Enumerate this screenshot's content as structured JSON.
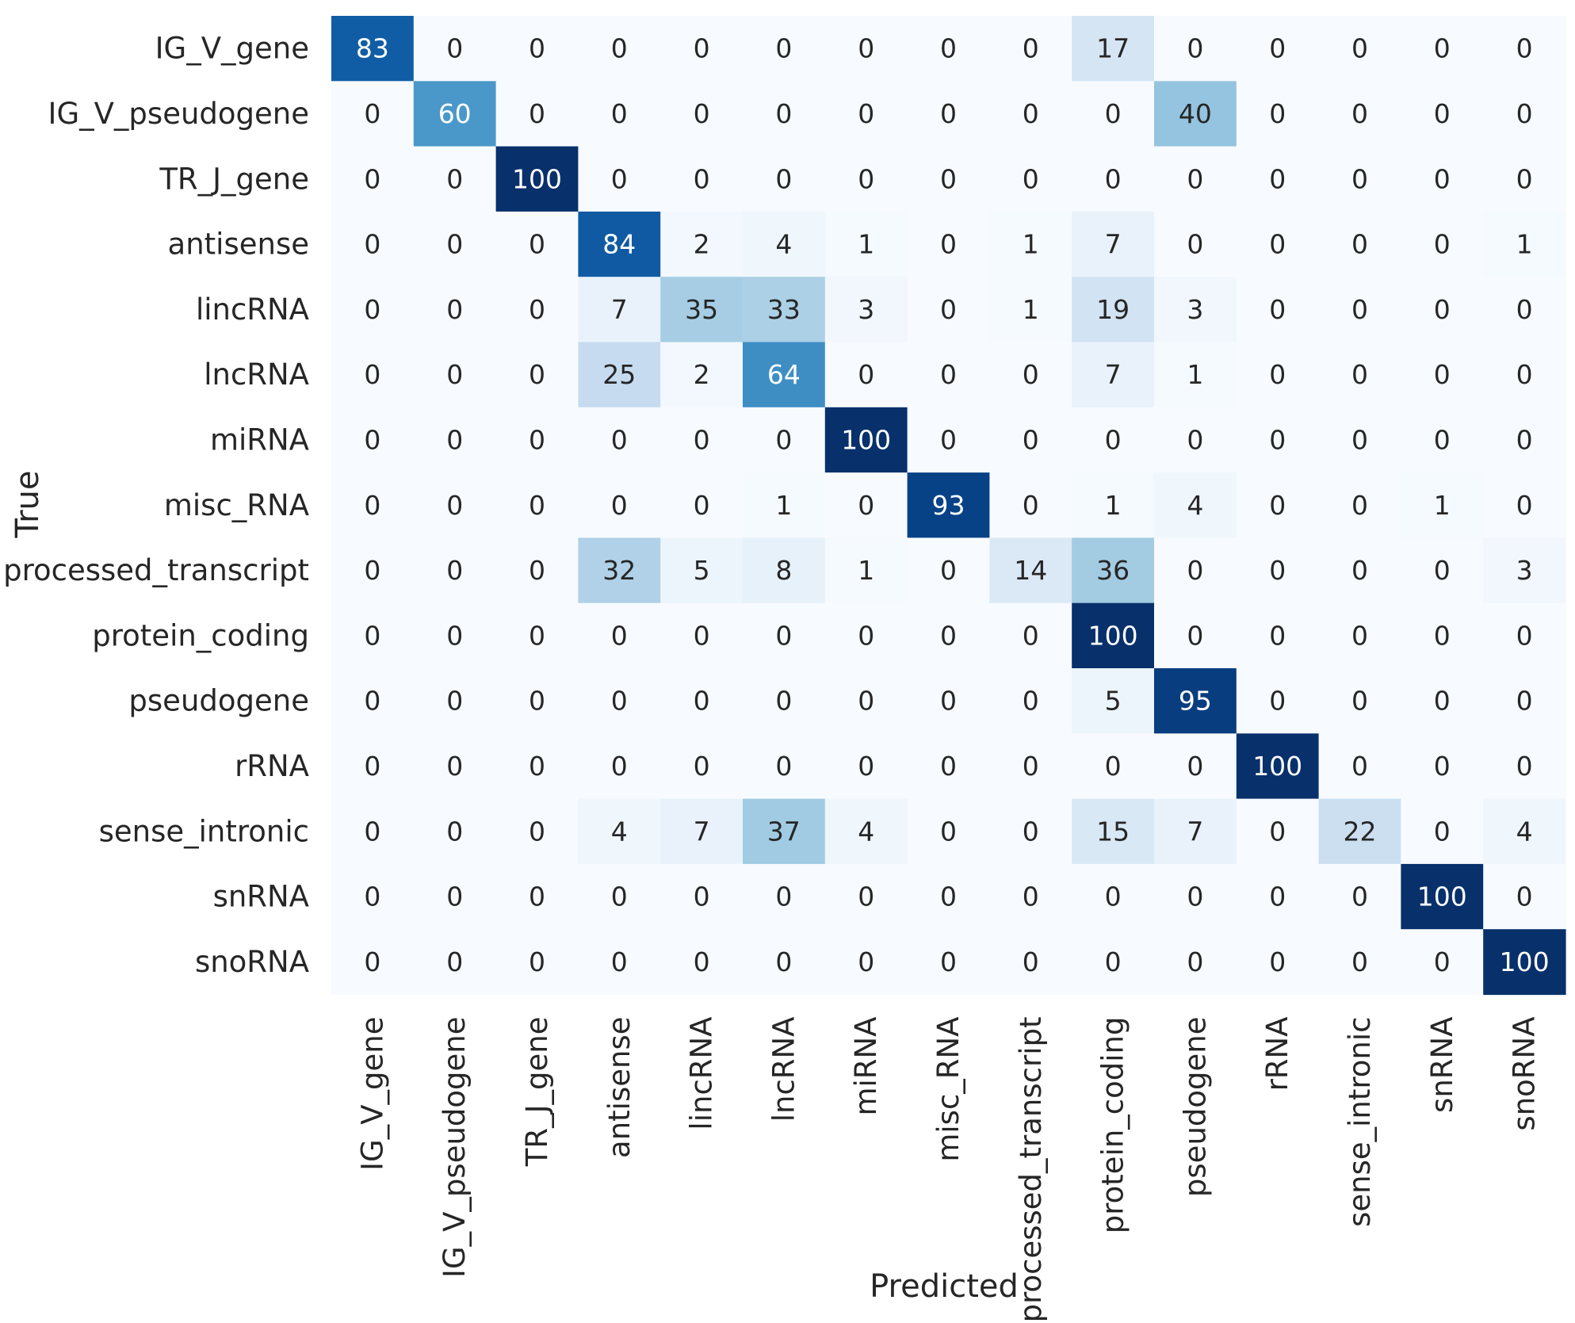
{
  "chart_data": {
    "type": "heatmap",
    "xlabel": "Predicted",
    "ylabel": "True",
    "colormap": "Blues",
    "value_range": [
      0,
      100
    ],
    "colorbar": false,
    "annotations_shown": true,
    "rows": [
      "IG_V_gene",
      "IG_V_pseudogene",
      "TR_J_gene",
      "antisense",
      "lincRNA",
      "lncRNA",
      "miRNA",
      "misc_RNA",
      "processed_transcript",
      "protein_coding",
      "pseudogene",
      "rRNA",
      "sense_intronic",
      "snRNA",
      "snoRNA"
    ],
    "columns": [
      "IG_V_gene",
      "IG_V_pseudogene",
      "TR_J_gene",
      "antisense",
      "lincRNA",
      "lncRNA",
      "miRNA",
      "misc_RNA",
      "processed_transcript",
      "protein_coding",
      "pseudogene",
      "rRNA",
      "sense_intronic",
      "snRNA",
      "snoRNA"
    ],
    "values": [
      [
        83,
        0,
        0,
        0,
        0,
        0,
        0,
        0,
        0,
        17,
        0,
        0,
        0,
        0,
        0
      ],
      [
        0,
        60,
        0,
        0,
        0,
        0,
        0,
        0,
        0,
        0,
        40,
        0,
        0,
        0,
        0
      ],
      [
        0,
        0,
        100,
        0,
        0,
        0,
        0,
        0,
        0,
        0,
        0,
        0,
        0,
        0,
        0
      ],
      [
        0,
        0,
        0,
        84,
        2,
        4,
        1,
        0,
        1,
        7,
        0,
        0,
        0,
        0,
        1
      ],
      [
        0,
        0,
        0,
        7,
        35,
        33,
        3,
        0,
        1,
        19,
        3,
        0,
        0,
        0,
        0
      ],
      [
        0,
        0,
        0,
        25,
        2,
        64,
        0,
        0,
        0,
        7,
        1,
        0,
        0,
        0,
        0
      ],
      [
        0,
        0,
        0,
        0,
        0,
        0,
        100,
        0,
        0,
        0,
        0,
        0,
        0,
        0,
        0
      ],
      [
        0,
        0,
        0,
        0,
        0,
        1,
        0,
        93,
        0,
        1,
        4,
        0,
        0,
        1,
        0
      ],
      [
        0,
        0,
        0,
        32,
        5,
        8,
        1,
        0,
        14,
        36,
        0,
        0,
        0,
        0,
        3
      ],
      [
        0,
        0,
        0,
        0,
        0,
        0,
        0,
        0,
        0,
        100,
        0,
        0,
        0,
        0,
        0
      ],
      [
        0,
        0,
        0,
        0,
        0,
        0,
        0,
        0,
        0,
        5,
        95,
        0,
        0,
        0,
        0
      ],
      [
        0,
        0,
        0,
        0,
        0,
        0,
        0,
        0,
        0,
        0,
        0,
        100,
        0,
        0,
        0
      ],
      [
        0,
        0,
        0,
        4,
        7,
        37,
        4,
        0,
        0,
        15,
        7,
        0,
        22,
        0,
        4
      ],
      [
        0,
        0,
        0,
        0,
        0,
        0,
        0,
        0,
        0,
        0,
        0,
        0,
        0,
        100,
        0
      ],
      [
        0,
        0,
        0,
        0,
        0,
        0,
        0,
        0,
        0,
        0,
        0,
        0,
        0,
        0,
        100
      ]
    ]
  }
}
